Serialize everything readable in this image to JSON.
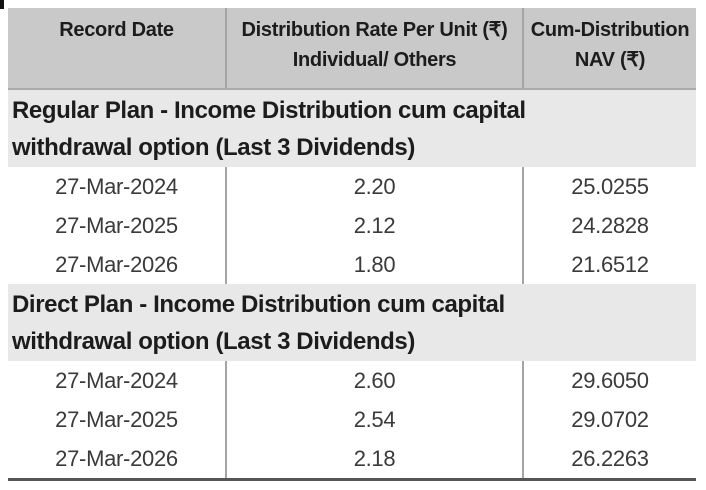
{
  "header": {
    "col1": "Record Date",
    "col2_line1": "Distribution Rate Per Unit (₹)",
    "col2_line2": "Individual/ Others",
    "col3_line1": "Cum-Distribution",
    "col3_line2": "NAV (₹)"
  },
  "sections": [
    {
      "title_line1": "Regular Plan - Income Distribution cum capital",
      "title_line2": "withdrawal option (Last 3 Dividends)",
      "rows": [
        {
          "record_date": "27-Mar-2024",
          "rate": "2.20",
          "nav": "25.0255"
        },
        {
          "record_date": "27-Mar-2025",
          "rate": "2.12",
          "nav": "24.2828"
        },
        {
          "record_date": "27-Mar-2026",
          "rate": "1.80",
          "nav": "21.6512"
        }
      ]
    },
    {
      "title_line1": "Direct Plan - Income Distribution cum capital",
      "title_line2": "withdrawal option (Last 3 Dividends)",
      "rows": [
        {
          "record_date": "27-Mar-2024",
          "rate": "2.60",
          "nav": "29.6050"
        },
        {
          "record_date": "27-Mar-2025",
          "rate": "2.54",
          "nav": "29.0702"
        },
        {
          "record_date": "27-Mar-2026",
          "rate": "2.18",
          "nav": "26.2263"
        }
      ]
    }
  ],
  "colors": {
    "header_bg": "#c9c9c9",
    "section_bg": "#e8e8e8",
    "divider": "#a5a5a5",
    "header_underline": "#a9a9a9",
    "bottom_border": "#555555",
    "data_text": "#3a3a3a",
    "heading_text": "#1c1c1c"
  }
}
